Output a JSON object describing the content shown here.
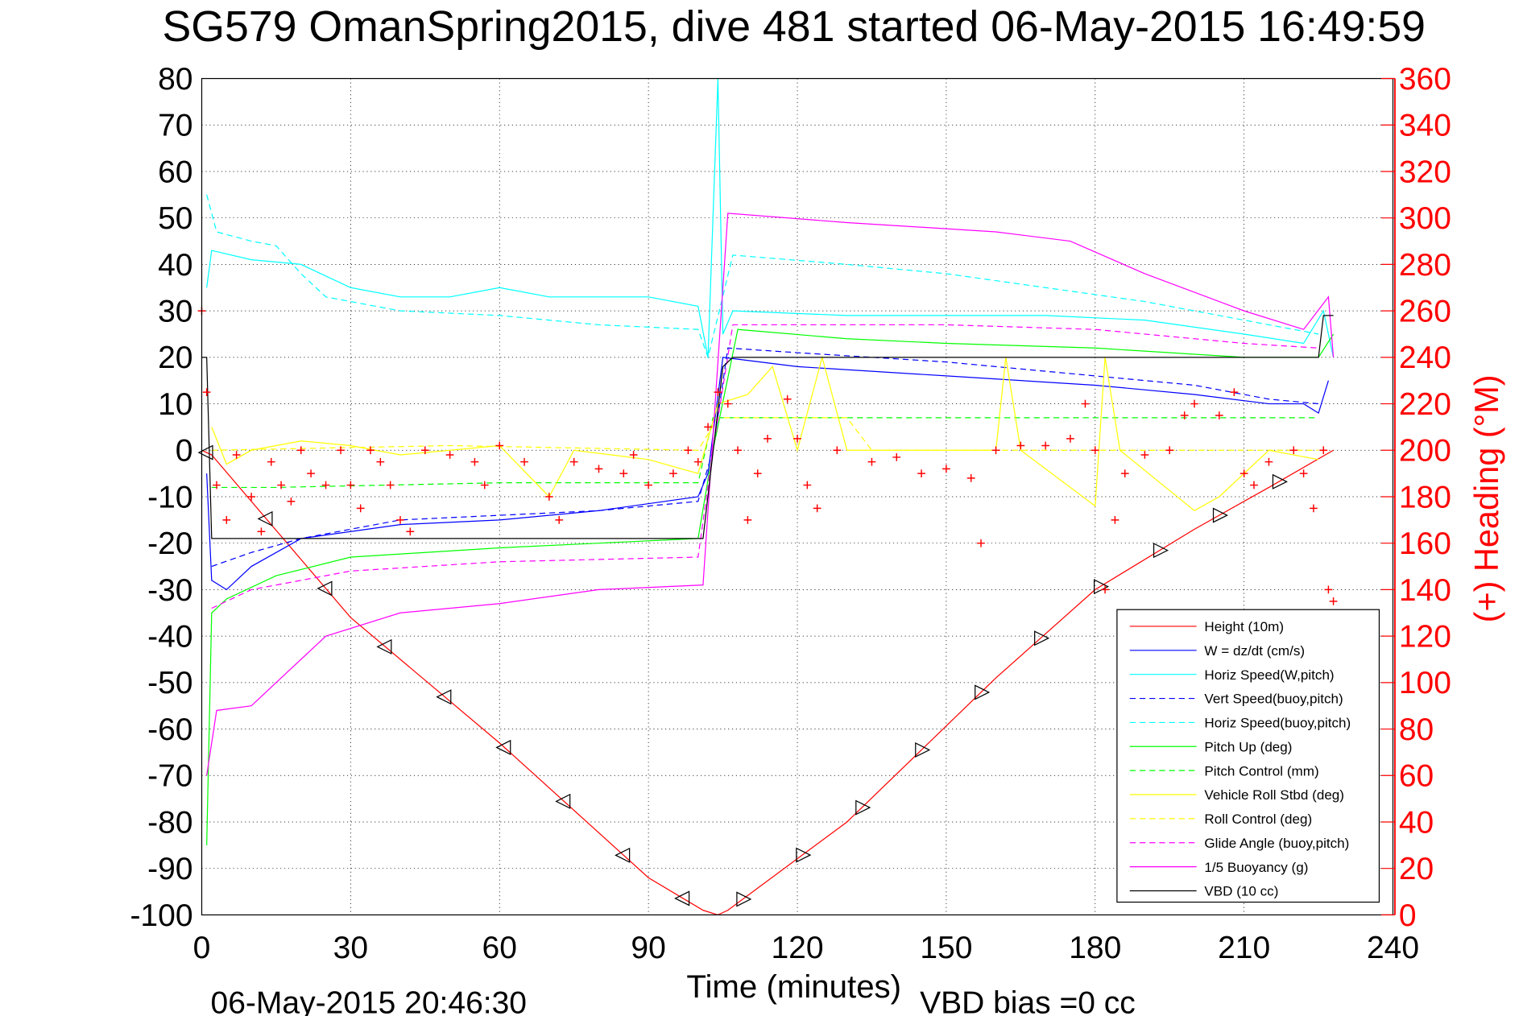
{
  "chart_data": {
    "type": "line",
    "title": "SG579 OmanSpring2015, dive 481 started 06-May-2015 16:49:59",
    "xlabel": "Time (minutes)",
    "ylabel_right": "(+) Heading (°M)",
    "footer_left": "06-May-2015 20:46:30",
    "footer_right": "VBD bias =0 cc",
    "xlim": [
      0,
      240
    ],
    "ylim": [
      -100,
      80
    ],
    "ylim_right": [
      0,
      360
    ],
    "xticks": [
      "0",
      "30",
      "60",
      "90",
      "120",
      "150",
      "180",
      "210",
      "240"
    ],
    "yticks": [
      "80",
      "70",
      "60",
      "50",
      "40",
      "30",
      "20",
      "10",
      "0",
      "-10",
      "-20",
      "-30",
      "-40",
      "-50",
      "-60",
      "-70",
      "-80",
      "-90",
      "-100"
    ],
    "yticks_right": [
      "360",
      "340",
      "320",
      "300",
      "280",
      "260",
      "240",
      "220",
      "200",
      "180",
      "160",
      "140",
      "120",
      "100",
      "80",
      "60",
      "40",
      "20",
      "0"
    ],
    "grid": true,
    "legend_position": "bottom-right",
    "series": [
      {
        "name": "Height (10m)",
        "color": "#ff0000",
        "dash": false,
        "markers": "triangle",
        "points": [
          [
            0,
            0
          ],
          [
            2,
            -1
          ],
          [
            30,
            -36
          ],
          [
            60,
            -63
          ],
          [
            90,
            -92
          ],
          [
            101,
            -99
          ],
          [
            104,
            -100
          ],
          [
            106,
            -99
          ],
          [
            130,
            -80
          ],
          [
            160,
            -49
          ],
          [
            180,
            -30
          ],
          [
            200,
            -17
          ],
          [
            215,
            -8
          ],
          [
            228,
            0
          ]
        ]
      },
      {
        "name": "W = dz/dt (cm/s)",
        "color": "#0000ff",
        "dash": false,
        "points": [
          [
            1,
            -5
          ],
          [
            2,
            -28
          ],
          [
            5,
            -30
          ],
          [
            10,
            -25
          ],
          [
            20,
            -19
          ],
          [
            40,
            -16
          ],
          [
            60,
            -15
          ],
          [
            80,
            -13
          ],
          [
            100,
            -10
          ],
          [
            102,
            -5
          ],
          [
            105,
            20
          ],
          [
            120,
            18
          ],
          [
            150,
            16
          ],
          [
            180,
            14
          ],
          [
            200,
            12
          ],
          [
            215,
            10
          ],
          [
            222,
            10
          ],
          [
            225,
            8
          ],
          [
            227,
            15
          ]
        ]
      },
      {
        "name": "Horiz Speed(W,pitch)",
        "color": "#00ffff",
        "dash": false,
        "points": [
          [
            1,
            35
          ],
          [
            2,
            43
          ],
          [
            10,
            41
          ],
          [
            20,
            40
          ],
          [
            30,
            35
          ],
          [
            40,
            33
          ],
          [
            50,
            33
          ],
          [
            60,
            35
          ],
          [
            70,
            33
          ],
          [
            80,
            33
          ],
          [
            90,
            33
          ],
          [
            100,
            31
          ],
          [
            102,
            20
          ],
          [
            104,
            80
          ],
          [
            105,
            25
          ],
          [
            107,
            30
          ],
          [
            130,
            29
          ],
          [
            150,
            29
          ],
          [
            170,
            29
          ],
          [
            190,
            28
          ],
          [
            210,
            25
          ],
          [
            222,
            23
          ],
          [
            226,
            30
          ],
          [
            228,
            20
          ]
        ]
      },
      {
        "name": "Vert Speed(buoy,pitch)",
        "color": "#0000ff",
        "dash": true,
        "points": [
          [
            2,
            -25
          ],
          [
            10,
            -22
          ],
          [
            20,
            -19
          ],
          [
            40,
            -15
          ],
          [
            60,
            -14
          ],
          [
            80,
            -13
          ],
          [
            100,
            -11
          ],
          [
            103,
            0
          ],
          [
            106,
            22
          ],
          [
            120,
            21
          ],
          [
            150,
            19
          ],
          [
            180,
            16
          ],
          [
            200,
            14
          ],
          [
            215,
            11
          ],
          [
            225,
            10
          ]
        ]
      },
      {
        "name": "Horiz Speed(buoy,pitch)",
        "color": "#00ffff",
        "dash": true,
        "points": [
          [
            1,
            55
          ],
          [
            3,
            47
          ],
          [
            10,
            45
          ],
          [
            15,
            44
          ],
          [
            20,
            38
          ],
          [
            25,
            33
          ],
          [
            40,
            30
          ],
          [
            60,
            29
          ],
          [
            80,
            27
          ],
          [
            100,
            26
          ],
          [
            102,
            20
          ],
          [
            107,
            42
          ],
          [
            130,
            40
          ],
          [
            150,
            38
          ],
          [
            170,
            35
          ],
          [
            190,
            32
          ],
          [
            210,
            28
          ],
          [
            225,
            25
          ]
        ]
      },
      {
        "name": "Pitch Up (deg)",
        "color": "#00ff00",
        "dash": false,
        "points": [
          [
            1,
            -85
          ],
          [
            2,
            -35
          ],
          [
            5,
            -32
          ],
          [
            15,
            -27
          ],
          [
            30,
            -23
          ],
          [
            60,
            -21
          ],
          [
            80,
            -20
          ],
          [
            100,
            -19
          ],
          [
            103,
            0
          ],
          [
            108,
            26
          ],
          [
            130,
            24
          ],
          [
            150,
            23
          ],
          [
            180,
            22
          ],
          [
            210,
            20
          ],
          [
            225,
            20
          ],
          [
            228,
            25
          ]
        ]
      },
      {
        "name": "Pitch Control (mm)",
        "color": "#00ff00",
        "dash": true,
        "points": [
          [
            2,
            -8
          ],
          [
            15,
            -8
          ],
          [
            60,
            -7
          ],
          [
            100,
            -7
          ],
          [
            103,
            7
          ],
          [
            150,
            7
          ],
          [
            200,
            7
          ],
          [
            225,
            7
          ]
        ]
      },
      {
        "name": "Vehicle Roll Stbd (deg)",
        "color": "#ffff00",
        "dash": false,
        "points": [
          [
            2,
            5
          ],
          [
            5,
            -3
          ],
          [
            10,
            0
          ],
          [
            20,
            2
          ],
          [
            30,
            1
          ],
          [
            40,
            -1
          ],
          [
            60,
            1
          ],
          [
            70,
            -10
          ],
          [
            75,
            0
          ],
          [
            90,
            -2
          ],
          [
            100,
            -5
          ],
          [
            104,
            10
          ],
          [
            110,
            12
          ],
          [
            115,
            18
          ],
          [
            120,
            0
          ],
          [
            125,
            20
          ],
          [
            130,
            0
          ],
          [
            160,
            0
          ],
          [
            162,
            20
          ],
          [
            165,
            0
          ],
          [
            180,
            -12
          ],
          [
            182,
            20
          ],
          [
            185,
            0
          ],
          [
            200,
            -13
          ],
          [
            205,
            -10
          ],
          [
            215,
            0
          ],
          [
            225,
            -2
          ]
        ]
      },
      {
        "name": "Roll Control (deg)",
        "color": "#ffff00",
        "dash": true,
        "points": [
          [
            2,
            0
          ],
          [
            50,
            1
          ],
          [
            100,
            0
          ],
          [
            104,
            7
          ],
          [
            130,
            7
          ],
          [
            135,
            0
          ],
          [
            160,
            0
          ],
          [
            200,
            0
          ],
          [
            225,
            0
          ]
        ]
      },
      {
        "name": "Glide Angle (buoy,pitch)",
        "color": "#ff00ff",
        "dash": true,
        "points": [
          [
            2,
            -34
          ],
          [
            10,
            -30
          ],
          [
            30,
            -26
          ],
          [
            60,
            -24
          ],
          [
            100,
            -23
          ],
          [
            103,
            0
          ],
          [
            107,
            27
          ],
          [
            150,
            27
          ],
          [
            180,
            26
          ],
          [
            210,
            23
          ],
          [
            225,
            22
          ]
        ]
      },
      {
        "name": "1/5 Buoyancy (g)",
        "color": "#ff00ff",
        "dash": false,
        "points": [
          [
            1,
            -70
          ],
          [
            3,
            -56
          ],
          [
            10,
            -55
          ],
          [
            15,
            -50
          ],
          [
            25,
            -40
          ],
          [
            40,
            -35
          ],
          [
            60,
            -33
          ],
          [
            80,
            -30
          ],
          [
            101,
            -29
          ],
          [
            106,
            51
          ],
          [
            130,
            49
          ],
          [
            160,
            47
          ],
          [
            175,
            45
          ],
          [
            190,
            38
          ],
          [
            210,
            30
          ],
          [
            222,
            26
          ],
          [
            227,
            33
          ],
          [
            228,
            20
          ]
        ]
      },
      {
        "name": "VBD (10 cc)",
        "color": "#000000",
        "dash": false,
        "points": [
          [
            0,
            20
          ],
          [
            1,
            20
          ],
          [
            2,
            -19
          ],
          [
            101,
            -19
          ],
          [
            105,
            18
          ],
          [
            107,
            20
          ],
          [
            150,
            20
          ],
          [
            200,
            20
          ],
          [
            225,
            20
          ],
          [
            226,
            29
          ],
          [
            228,
            29
          ]
        ]
      }
    ],
    "heading": {
      "name": "Heading",
      "color": "#ff0000",
      "marker": "+",
      "points": [
        [
          0,
          260
        ],
        [
          1,
          225
        ],
        [
          3,
          185
        ],
        [
          5,
          170
        ],
        [
          7,
          198
        ],
        [
          10,
          180
        ],
        [
          12,
          165
        ],
        [
          14,
          195
        ],
        [
          16,
          185
        ],
        [
          18,
          178
        ],
        [
          20,
          200
        ],
        [
          22,
          190
        ],
        [
          25,
          185
        ],
        [
          28,
          200
        ],
        [
          30,
          185
        ],
        [
          32,
          175
        ],
        [
          34,
          200
        ],
        [
          36,
          195
        ],
        [
          38,
          185
        ],
        [
          40,
          170
        ],
        [
          42,
          165
        ],
        [
          45,
          200
        ],
        [
          50,
          198
        ],
        [
          55,
          195
        ],
        [
          57,
          185
        ],
        [
          60,
          202
        ],
        [
          65,
          195
        ],
        [
          70,
          180
        ],
        [
          72,
          170
        ],
        [
          75,
          195
        ],
        [
          80,
          192
        ],
        [
          85,
          190
        ],
        [
          87,
          198
        ],
        [
          90,
          185
        ],
        [
          95,
          190
        ],
        [
          98,
          200
        ],
        [
          100,
          195
        ],
        [
          102,
          210
        ],
        [
          104,
          225
        ],
        [
          106,
          220
        ],
        [
          108,
          200
        ],
        [
          110,
          170
        ],
        [
          112,
          190
        ],
        [
          114,
          205
        ],
        [
          118,
          222
        ],
        [
          120,
          205
        ],
        [
          122,
          185
        ],
        [
          124,
          175
        ],
        [
          128,
          200
        ],
        [
          135,
          195
        ],
        [
          140,
          197
        ],
        [
          145,
          190
        ],
        [
          150,
          192
        ],
        [
          155,
          188
        ],
        [
          157,
          160
        ],
        [
          160,
          200
        ],
        [
          165,
          202
        ],
        [
          170,
          202
        ],
        [
          175,
          205
        ],
        [
          178,
          220
        ],
        [
          180,
          200
        ],
        [
          182,
          140
        ],
        [
          184,
          170
        ],
        [
          186,
          190
        ],
        [
          190,
          198
        ],
        [
          195,
          200
        ],
        [
          198,
          215
        ],
        [
          200,
          220
        ],
        [
          205,
          215
        ],
        [
          208,
          225
        ],
        [
          210,
          190
        ],
        [
          212,
          185
        ],
        [
          215,
          195
        ],
        [
          220,
          200
        ],
        [
          222,
          190
        ],
        [
          224,
          175
        ],
        [
          226,
          200
        ],
        [
          227,
          140
        ],
        [
          228,
          135
        ]
      ]
    }
  }
}
